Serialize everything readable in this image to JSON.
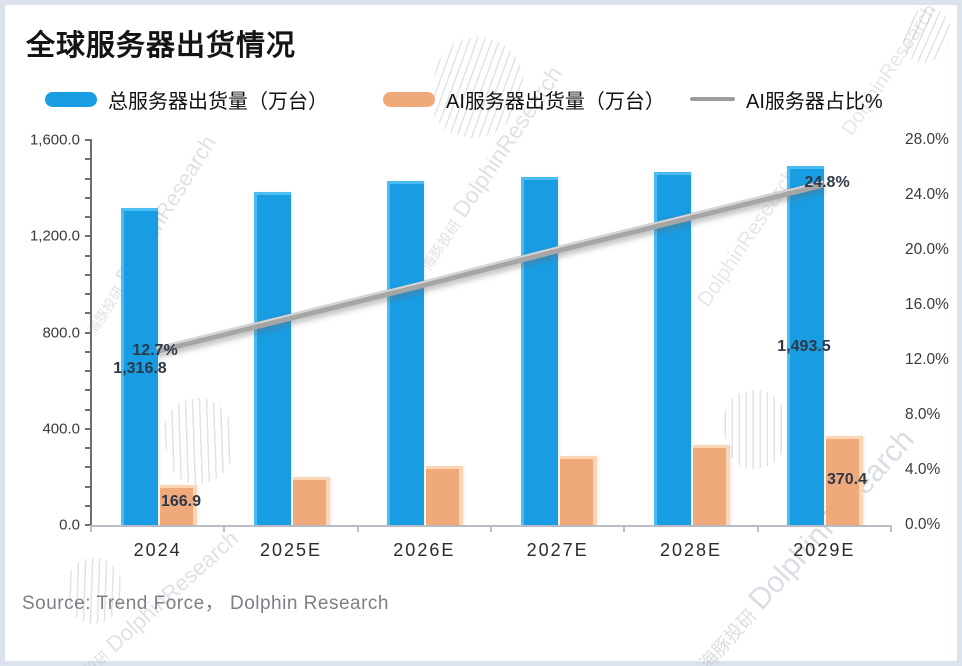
{
  "title": "全球服务器出货情况",
  "source": "Source: Trend Force，  Dolphin Research",
  "watermark": {
    "cn": "海豚投研",
    "en": "DolphinResearch"
  },
  "legend": {
    "items": [
      {
        "label": "总服务器出货量（万台）",
        "color": "#189ce2",
        "type": "bar"
      },
      {
        "label": "AI服务器出货量（万台）",
        "color": "#f0a97a",
        "type": "bar"
      },
      {
        "label": "AI服务器占比%",
        "color": "#9c9c9c",
        "type": "line"
      }
    ]
  },
  "chart_data": {
    "type": "combo",
    "categories": [
      "2024",
      "2025E",
      "2026E",
      "2027E",
      "2028E",
      "2029E"
    ],
    "series": [
      {
        "name": "总服务器出货量（万台）",
        "type": "bar",
        "axis": "left",
        "color": "#189ce2",
        "values": [
          1316.8,
          1384,
          1430,
          1448,
          1468,
          1493.5
        ]
      },
      {
        "name": "AI服务器出货量（万台）",
        "type": "bar",
        "axis": "left",
        "color": "#f0a97a",
        "values": [
          166.9,
          200,
          245,
          285,
          332,
          370.4
        ]
      },
      {
        "name": "AI服务器占比%",
        "type": "line",
        "axis": "right",
        "color": "#a6a6a6",
        "values": [
          12.7,
          15.1,
          17.5,
          20.0,
          22.4,
          24.8
        ]
      }
    ],
    "left_axis": {
      "min": 0,
      "max": 1600,
      "tick_step": 400,
      "tick_labels": [
        "0.0",
        "400.0",
        "800.0",
        "1,200.0",
        "1,600.0"
      ]
    },
    "right_axis": {
      "min": 0,
      "max": 28,
      "tick_step": 4,
      "tick_labels": [
        "0.0%",
        "4.0%",
        "8.0%",
        "12.0%",
        "16.0%",
        "20.0%",
        "24.0%",
        "28.0%"
      ]
    },
    "grid": false,
    "legend_position": "top",
    "annotations": [
      {
        "text": "12.7%",
        "category": "2024",
        "series_index": 2
      },
      {
        "text": "1,316.8",
        "category": "2024",
        "series_index": 0
      },
      {
        "text": "166.9",
        "category": "2024",
        "series_index": 1
      },
      {
        "text": "24.8%",
        "category": "2029E",
        "series_index": 2
      },
      {
        "text": "1,493.5",
        "category": "2029E",
        "series_index": 0
      },
      {
        "text": "370.4",
        "category": "2029E",
        "series_index": 1
      }
    ]
  }
}
